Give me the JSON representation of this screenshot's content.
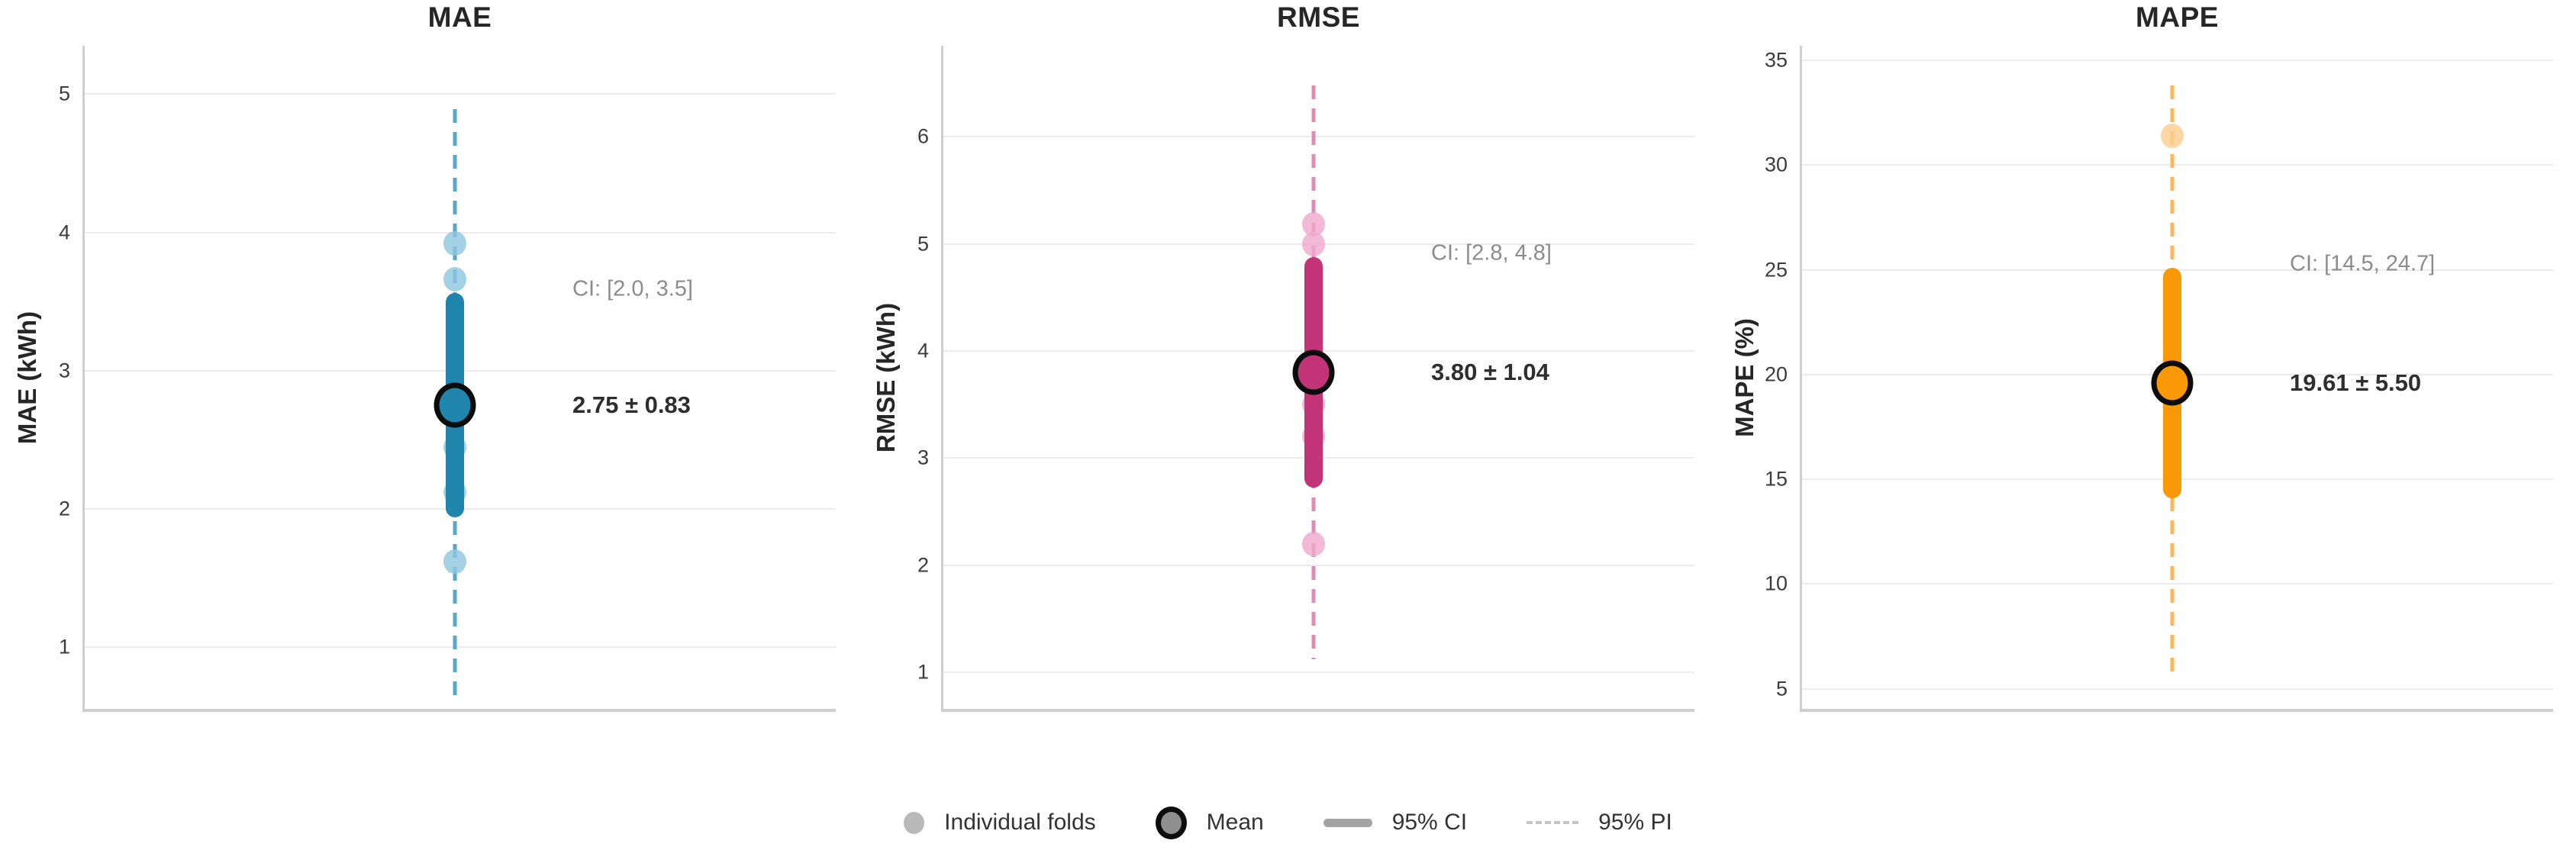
{
  "figure": {
    "background": "#ffffff"
  },
  "chart_data": [
    {
      "type": "interval",
      "title": "MAE",
      "ylabel": "MAE (kWh)",
      "unit": "kWh",
      "yticks": [
        1,
        2,
        3,
        4,
        5
      ],
      "ylim": [
        0.55,
        5.35
      ],
      "grid": true,
      "mean": 2.75,
      "mean_label": "2.75 ± 0.83",
      "ci": [
        2.0,
        3.5
      ],
      "ci_label": "CI: [2.0, 3.5]",
      "pi": [
        0.63,
        4.89
      ],
      "folds": [
        3.92,
        3.66,
        2.45,
        2.12,
        1.62
      ],
      "colors": {
        "main": "#1F85AC",
        "fold": "#8FC6DE",
        "dash": "#55A8CC"
      }
    },
    {
      "type": "interval",
      "title": "RMSE",
      "ylabel": "RMSE (kWh)",
      "unit": "kWh",
      "yticks": [
        1,
        2,
        3,
        4,
        5,
        6
      ],
      "ylim": [
        0.65,
        6.85
      ],
      "grid": true,
      "mean": 3.8,
      "mean_label": "3.80 ± 1.04",
      "ci": [
        2.8,
        4.8
      ],
      "ci_label": "CI: [2.8, 4.8]",
      "pi": [
        1.12,
        6.48
      ],
      "folds": [
        5.18,
        5.0,
        3.5,
        3.2,
        2.2
      ],
      "colors": {
        "main": "#C23377",
        "fold": "#EFA9CE",
        "dash": "#E289B5"
      }
    },
    {
      "type": "interval",
      "title": "MAPE",
      "ylabel": "MAPE (%)",
      "unit": "%",
      "yticks": [
        5,
        10,
        15,
        20,
        25,
        30,
        35
      ],
      "ylim": [
        4.0,
        35.7
      ],
      "grid": true,
      "mean": 19.61,
      "mean_label": "19.61 ± 5.50",
      "ci": [
        14.5,
        24.7
      ],
      "ci_label": "CI: [14.5, 24.7]",
      "pi": [
        5.42,
        33.8
      ],
      "folds": [
        31.4
      ],
      "colors": {
        "main": "#FA9805",
        "fold": "#FDCD8C",
        "dash": "#FCB65B"
      }
    }
  ],
  "legend": {
    "items": [
      {
        "label": "Individual folds",
        "type": "dot",
        "color": "#b9b9b9"
      },
      {
        "label": "Mean",
        "type": "ring-dot",
        "color": "#8f8f8f",
        "ring": "#0d0d0d"
      },
      {
        "label": "95% CI",
        "type": "thick-line",
        "color": "#a3a3a3"
      },
      {
        "label": "95% PI",
        "type": "dashed-line",
        "color": "#c4c4c4"
      }
    ]
  }
}
